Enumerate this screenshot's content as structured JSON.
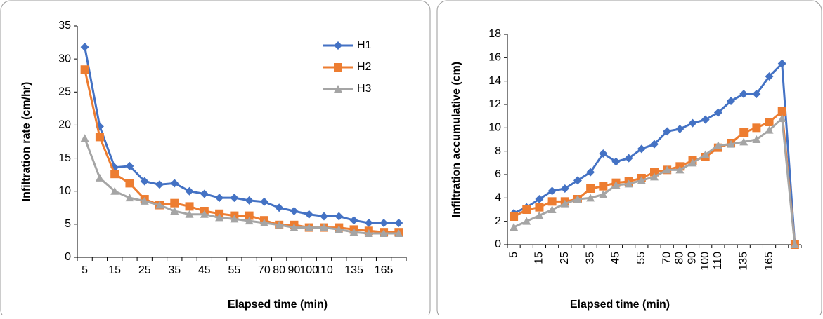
{
  "chart_data": [
    {
      "type": "line",
      "x_label": "Elapsed time (min)",
      "y_label": "Infiltration rate (cm/hr)",
      "categories": [
        "5",
        null,
        "15",
        null,
        "25",
        null,
        "35",
        null,
        "45",
        null,
        "55",
        null,
        "70",
        "80",
        "90",
        "100",
        "110",
        null,
        "135",
        null,
        "165",
        null
      ],
      "ylim": [
        0,
        35
      ],
      "yticks": [
        0,
        5,
        10,
        15,
        20,
        25,
        30,
        35
      ],
      "legend": "top-right",
      "series": [
        {
          "name": "H1",
          "color": "#4472c4",
          "marker": "diamond",
          "values": [
            31.8,
            19.8,
            13.6,
            13.8,
            11.5,
            11,
            11.2,
            10,
            9.6,
            9,
            9,
            8.6,
            8.4,
            7.5,
            7,
            6.5,
            6.2,
            6.2,
            5.6,
            5.2,
            5.2,
            5.2
          ]
        },
        {
          "name": "H2",
          "color": "#ed7d31",
          "marker": "square",
          "values": [
            28.4,
            18.2,
            12.6,
            11.2,
            8.8,
            7.9,
            8.2,
            7.7,
            7,
            6.6,
            6.3,
            6.3,
            5.6,
            4.9,
            4.9,
            4.5,
            4.5,
            4.5,
            4.2,
            4,
            3.8,
            3.8
          ]
        },
        {
          "name": "H3",
          "color": "#a5a5a5",
          "marker": "triangle",
          "values": [
            18,
            12,
            10,
            9,
            8.5,
            7.9,
            7,
            6.5,
            6.5,
            6,
            5.8,
            5.5,
            5.2,
            4.9,
            4.5,
            4.5,
            4.5,
            4.2,
            3.8,
            3.6,
            3.6,
            3.6
          ]
        }
      ]
    },
    {
      "type": "line",
      "x_label": "Elapsed time (min)",
      "y_label": "Infiltration accumulative (cm)",
      "categories": [
        "5",
        null,
        "15",
        null,
        "25",
        null,
        "35",
        null,
        "45",
        null,
        "55",
        null,
        "70",
        "80",
        "90",
        "100",
        "110",
        null,
        "135",
        null,
        "165",
        null,
        null
      ],
      "ylim": [
        0,
        18
      ],
      "yticks": [
        0,
        2,
        4,
        6,
        8,
        10,
        12,
        14,
        16,
        18
      ],
      "rotate_x_labels": true,
      "series": [
        {
          "color": "#4472c4",
          "marker": "diamond",
          "values": [
            2.7,
            3.2,
            3.9,
            4.6,
            4.8,
            5.5,
            6.2,
            7.8,
            7.1,
            7.4,
            8.2,
            8.6,
            9.7,
            9.9,
            10.4,
            10.7,
            11.3,
            12.3,
            12.9,
            12.9,
            14.4,
            15.5,
            0
          ]
        },
        {
          "color": "#ed7d31",
          "marker": "square",
          "values": [
            2.4,
            3,
            3.2,
            3.7,
            3.7,
            3.9,
            4.8,
            5,
            5.3,
            5.4,
            5.7,
            6.2,
            6.4,
            6.7,
            7.2,
            7.5,
            8.3,
            8.7,
            9.6,
            10,
            10.5,
            11.4,
            0
          ]
        },
        {
          "color": "#a5a5a5",
          "marker": "triangle",
          "values": [
            1.5,
            2,
            2.5,
            3,
            3.5,
            3.9,
            4,
            4.3,
            5.1,
            5.2,
            5.5,
            5.8,
            6.4,
            6.4,
            7,
            7.7,
            8.5,
            8.6,
            8.8,
            9,
            9.8,
            10.8,
            0
          ]
        }
      ]
    }
  ]
}
